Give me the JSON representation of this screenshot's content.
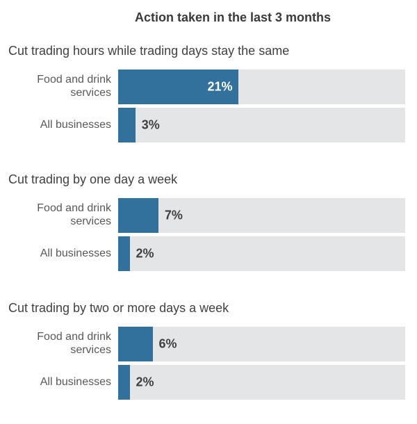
{
  "title": "Action taken in the last 3 months",
  "colors": {
    "bar_fill": "#31719c",
    "bar_track": "#e4e5e7",
    "title_text": "#3a3a3a",
    "section_text": "#414042",
    "category_text": "#58585a",
    "value_text": "#3f3f41",
    "value_text_inside": "#ffffff"
  },
  "groups": [
    {
      "section": "Cut trading hours while trading days stay the same",
      "rows": [
        {
          "label": "Food and drink services",
          "value": 21,
          "value_label": "21%",
          "label_inside": true
        },
        {
          "label": "All businesses",
          "value": 3,
          "value_label": "3%",
          "label_inside": false
        }
      ]
    },
    {
      "section": "Cut trading by one day a week",
      "rows": [
        {
          "label": "Food and drink services",
          "value": 7,
          "value_label": "7%",
          "label_inside": false
        },
        {
          "label": "All businesses",
          "value": 2,
          "value_label": "2%",
          "label_inside": false
        }
      ]
    },
    {
      "section": "Cut trading by two or more days a week",
      "rows": [
        {
          "label": "Food and drink services",
          "value": 6,
          "value_label": "6%",
          "label_inside": false
        },
        {
          "label": "All businesses",
          "value": 2,
          "value_label": "2%",
          "label_inside": false
        }
      ]
    }
  ],
  "chart_data": {
    "type": "bar",
    "orientation": "horizontal",
    "title": "Action taken in the last 3 months",
    "categories": [
      "Cut trading hours while trading days stay the same",
      "Cut trading by one day a week",
      "Cut trading by two or more days a week"
    ],
    "series": [
      {
        "name": "Food and drink services",
        "values": [
          21,
          7,
          6
        ]
      },
      {
        "name": "All businesses",
        "values": [
          3,
          2,
          2
        ]
      }
    ],
    "unit": "%",
    "xlim": [
      0,
      50
    ],
    "value_labels": true,
    "grid": false,
    "legend_position": "none"
  }
}
